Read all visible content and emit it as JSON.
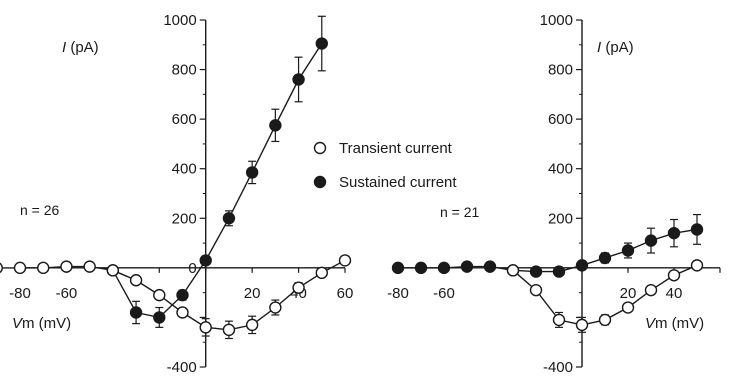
{
  "legend": {
    "transient": "Transient current",
    "sustained": "Sustained current"
  },
  "chart_data": [
    {
      "type": "line",
      "panel": "left",
      "ylabel_italic": "I",
      "ylabel_unit": " (pA)",
      "xlabel_italic": "V",
      "xlabel_unit": "m (mV)",
      "n_label": "n = 26",
      "xlim": [
        -80,
        60
      ],
      "ylim": [
        -400,
        1000
      ],
      "xticks": [
        -80,
        -60,
        -40,
        -20,
        0,
        20,
        40,
        60
      ],
      "xtick_labels": [
        "-80",
        "-60",
        "",
        "",
        "",
        "20",
        "40",
        "60"
      ],
      "yticks": [
        -400,
        -200,
        0,
        200,
        400,
        600,
        800,
        1000
      ],
      "ytick_labels": [
        "-400",
        "",
        "0",
        "200",
        "400",
        "600",
        "800",
        "1000"
      ],
      "series": [
        {
          "name": "Transient current",
          "marker": "open-circle",
          "points": [
            {
              "x": -90,
              "y": 0
            },
            {
              "x": -80,
              "y": 0
            },
            {
              "x": -70,
              "y": 0
            },
            {
              "x": -60,
              "y": 5
            },
            {
              "x": -50,
              "y": 5
            },
            {
              "x": -40,
              "y": -10
            },
            {
              "x": -30,
              "y": -50
            },
            {
              "x": -20,
              "y": -110
            },
            {
              "x": -10,
              "y": -180
            },
            {
              "x": 0,
              "y": -240
            },
            {
              "x": 10,
              "y": -250
            },
            {
              "x": 20,
              "y": -230
            },
            {
              "x": 30,
              "y": -160
            },
            {
              "x": 40,
              "y": -80
            },
            {
              "x": 50,
              "y": -20
            },
            {
              "x": 60,
              "y": 30
            }
          ],
          "errors": [
            0,
            0,
            0,
            0,
            0,
            0,
            0,
            0,
            0,
            35,
            35,
            35,
            30,
            20,
            0,
            0
          ]
        },
        {
          "name": "Sustained current",
          "marker": "filled-circle",
          "points": [
            {
              "x": -40,
              "y": -10
            },
            {
              "x": -30,
              "y": -180
            },
            {
              "x": -20,
              "y": -200
            },
            {
              "x": -10,
              "y": -110
            },
            {
              "x": 0,
              "y": 30
            },
            {
              "x": 10,
              "y": 200
            },
            {
              "x": 20,
              "y": 385
            },
            {
              "x": 30,
              "y": 575
            },
            {
              "x": 40,
              "y": 760
            },
            {
              "x": 50,
              "y": 905
            }
          ],
          "errors": [
            0,
            45,
            40,
            20,
            15,
            30,
            45,
            65,
            90,
            110
          ]
        }
      ]
    },
    {
      "type": "line",
      "panel": "right",
      "ylabel_italic": "I",
      "ylabel_unit": " (pA)",
      "xlabel_italic": "V",
      "xlabel_unit": "m (mV)",
      "n_label": "n = 21",
      "xlim": [
        -80,
        60
      ],
      "ylim": [
        -400,
        1000
      ],
      "xticks": [
        -80,
        -60,
        -40,
        -20,
        0,
        20,
        40,
        60
      ],
      "xtick_labels": [
        "-80",
        "-60",
        "",
        "",
        "",
        "20",
        "40",
        ""
      ],
      "yticks": [
        -400,
        -200,
        0,
        200,
        400,
        600,
        800,
        1000
      ],
      "ytick_labels": [
        "-400",
        "",
        "",
        "200",
        "400",
        "600",
        "800",
        "1000"
      ],
      "series": [
        {
          "name": "Transient current",
          "marker": "open-circle",
          "points": [
            {
              "x": -30,
              "y": -10
            },
            {
              "x": -20,
              "y": -90
            },
            {
              "x": -10,
              "y": -210
            },
            {
              "x": 0,
              "y": -230
            },
            {
              "x": 10,
              "y": -210
            },
            {
              "x": 20,
              "y": -160
            },
            {
              "x": 30,
              "y": -90
            },
            {
              "x": 40,
              "y": -30
            },
            {
              "x": 50,
              "y": 10
            }
          ],
          "errors": [
            0,
            0,
            30,
            30,
            20,
            0,
            0,
            0,
            0
          ]
        },
        {
          "name": "Sustained current",
          "marker": "filled-circle",
          "points": [
            {
              "x": -80,
              "y": 0
            },
            {
              "x": -70,
              "y": 0
            },
            {
              "x": -60,
              "y": 0
            },
            {
              "x": -50,
              "y": 5
            },
            {
              "x": -40,
              "y": 5
            },
            {
              "x": -30,
              "y": -10
            },
            {
              "x": -20,
              "y": -15
            },
            {
              "x": -10,
              "y": -15
            },
            {
              "x": 0,
              "y": 10
            },
            {
              "x": 10,
              "y": 40
            },
            {
              "x": 20,
              "y": 70
            },
            {
              "x": 30,
              "y": 110
            },
            {
              "x": 40,
              "y": 140
            },
            {
              "x": 50,
              "y": 155
            }
          ],
          "errors": [
            0,
            0,
            0,
            0,
            0,
            0,
            0,
            0,
            0,
            20,
            30,
            50,
            55,
            60
          ]
        }
      ]
    }
  ]
}
